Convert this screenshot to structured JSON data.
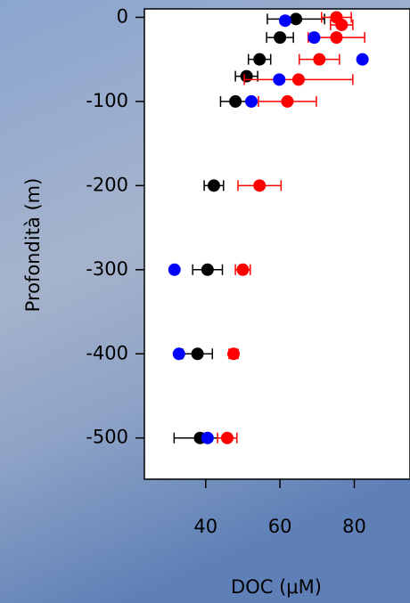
{
  "chart_data": {
    "type": "scatter",
    "xlabel": "DOC (μM)",
    "ylabel": "Profondità (m)",
    "xlim": [
      23.5,
      95
    ],
    "ylim": [
      -549,
      10
    ],
    "xticks": [
      40,
      60,
      80
    ],
    "yticks": [
      0,
      -100,
      -200,
      -300,
      -400,
      -500
    ],
    "series": [
      {
        "color": "#000000",
        "x": [
          64.3,
          60,
          54.5,
          51,
          48,
          42.2,
          40.5,
          37.8,
          38.5
        ],
        "y": [
          -2,
          -24,
          -50,
          -70,
          -100,
          -200,
          -300,
          -400,
          -500
        ],
        "xerr": [
          7.7,
          3.6,
          3,
          3,
          4,
          2.6,
          4,
          4,
          7
        ]
      },
      {
        "color": "#ff0000",
        "x": [
          75.2,
          76.6,
          75.2,
          70.6,
          65,
          62,
          54.5,
          50,
          47.5,
          45.8
        ],
        "y": [
          0,
          -9,
          -24,
          -50,
          -74,
          -100,
          -200,
          -300,
          -400,
          -500
        ],
        "xerr": [
          4,
          3,
          7.6,
          5.4,
          14.6,
          7.8,
          5.8,
          2,
          1.2,
          2.6
        ]
      },
      {
        "color": "#0000ff",
        "x": [
          61.4,
          69.2,
          82.2,
          59.8,
          52.3,
          31.6,
          32.8,
          40.5
        ],
        "y": [
          -4,
          -24,
          -50,
          -74,
          -100,
          -300,
          -400,
          -500
        ]
      }
    ]
  }
}
